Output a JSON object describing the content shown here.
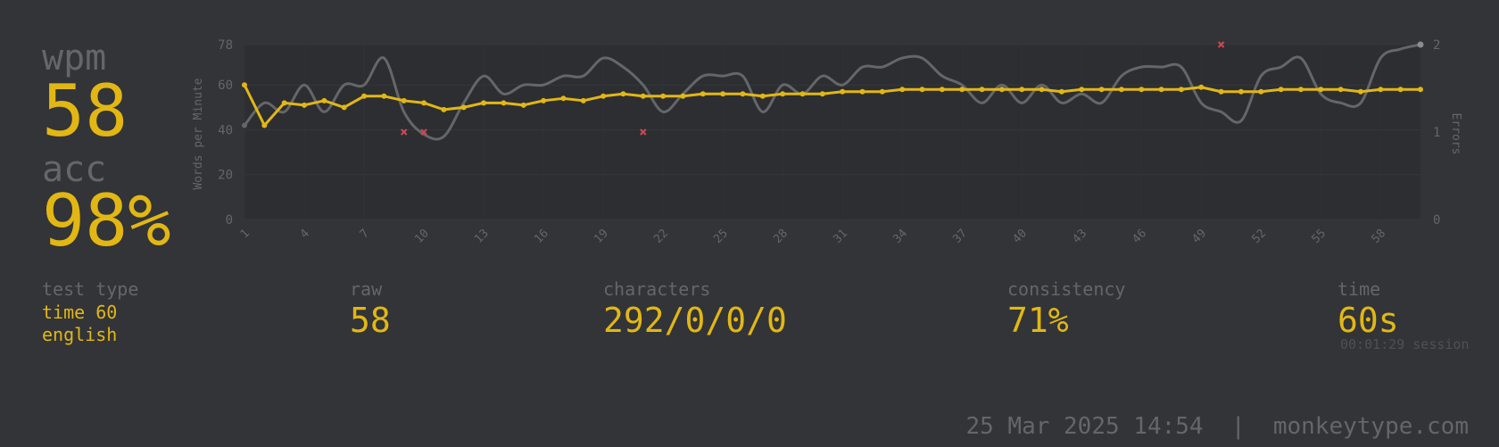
{
  "summary": {
    "wpm_label": "wpm",
    "wpm_value": "58",
    "acc_label": "acc",
    "acc_value": "98%"
  },
  "stats": {
    "test_type_label": "test type",
    "test_type_mode": "time 60",
    "test_type_language": "english",
    "raw_label": "raw",
    "raw_value": "58",
    "characters_label": "characters",
    "characters_value": "292/0/0/0",
    "consistency_label": "consistency",
    "consistency_value": "71%",
    "time_label": "time",
    "time_value": "60s",
    "session_note": "00:01:29 session"
  },
  "footer": {
    "date": "25 Mar 2025 14:54",
    "separator": "|",
    "site": "monkeytype.com"
  },
  "colors": {
    "background": "#323437",
    "plot_background": "#2c2e31",
    "accent": "#e2b714",
    "sub": "#646669",
    "raw_line": "#646669",
    "error": "#ca4754"
  },
  "chart_data": {
    "type": "line",
    "ylabel": "Words per Minute",
    "y2label": "Errors",
    "ylim": [
      0,
      78
    ],
    "y2lim": [
      0,
      2
    ],
    "y_ticks": [
      0,
      20,
      40,
      60,
      78
    ],
    "y2_ticks": [
      0,
      1,
      2
    ],
    "x": [
      1,
      2,
      3,
      4,
      5,
      6,
      7,
      8,
      9,
      10,
      11,
      12,
      13,
      14,
      15,
      16,
      17,
      18,
      19,
      20,
      21,
      22,
      23,
      24,
      25,
      26,
      27,
      28,
      29,
      30,
      31,
      32,
      33,
      34,
      35,
      36,
      37,
      38,
      39,
      40,
      41,
      42,
      43,
      44,
      45,
      46,
      47,
      48,
      49,
      50,
      51,
      52,
      53,
      54,
      55,
      56,
      57,
      58,
      59,
      60
    ],
    "x_ticks": [
      "1",
      "4",
      "7",
      "10",
      "13",
      "16",
      "19",
      "22",
      "25",
      "28",
      "31",
      "34",
      "37",
      "40",
      "43",
      "46",
      "49",
      "52",
      "55",
      "58"
    ],
    "series": [
      {
        "name": "wpm",
        "color": "#e2b714",
        "values": [
          60,
          42,
          52,
          51,
          53,
          50,
          55,
          55,
          53,
          52,
          49,
          50,
          52,
          52,
          51,
          53,
          54,
          53,
          55,
          56,
          55,
          55,
          55,
          56,
          56,
          56,
          55,
          56,
          56,
          56,
          57,
          57,
          57,
          58,
          58,
          58,
          58,
          58,
          58,
          58,
          58,
          57,
          58,
          58,
          58,
          58,
          58,
          58,
          59,
          57,
          57,
          57,
          58,
          58,
          58,
          58,
          57,
          58,
          58,
          58
        ]
      },
      {
        "name": "raw",
        "color": "#646669",
        "values": [
          42,
          52,
          48,
          60,
          48,
          60,
          60,
          72,
          48,
          38,
          37,
          52,
          64,
          56,
          60,
          60,
          64,
          64,
          72,
          68,
          60,
          48,
          56,
          64,
          64,
          64,
          48,
          60,
          56,
          64,
          60,
          68,
          68,
          72,
          72,
          64,
          60,
          52,
          60,
          52,
          60,
          52,
          56,
          52,
          64,
          68,
          68,
          68,
          52,
          48,
          44,
          64,
          68,
          72,
          56,
          52,
          52,
          72,
          76,
          78
        ]
      }
    ],
    "errors": [
      {
        "x": 9,
        "y": 1
      },
      {
        "x": 10,
        "y": 1
      },
      {
        "x": 21,
        "y": 1
      },
      {
        "x": 50,
        "y": 2
      }
    ],
    "grid": true
  }
}
